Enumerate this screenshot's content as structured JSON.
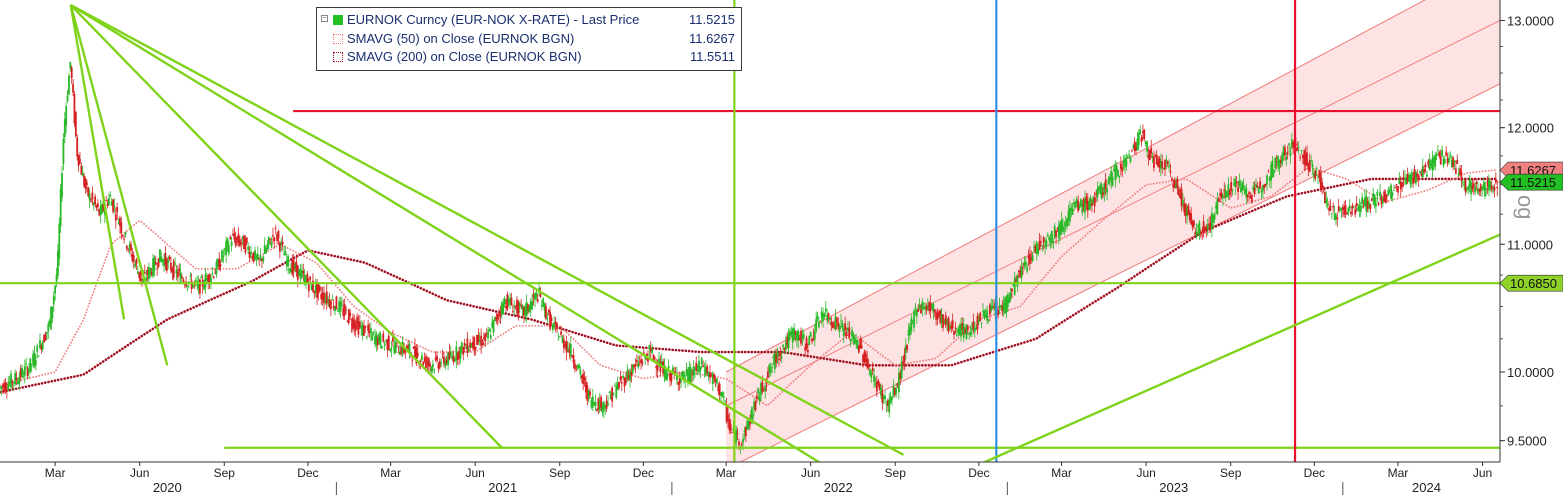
{
  "legend": {
    "items": [
      {
        "name": "EURNOK Curncy (EUR-NOK X-RATE) - Last Price",
        "value": "11.5215",
        "color": "#22c022",
        "style": "solid"
      },
      {
        "name": "SMAVG (50)  on Close (EURNOK BGN)",
        "value": "11.6267",
        "color": "#f08080",
        "style": "dotted"
      },
      {
        "name": "SMAVG (200)  on Close (EURNOK BGN)",
        "value": "11.5511",
        "color": "#a01020",
        "style": "dotted"
      }
    ]
  },
  "side_text": "og",
  "chart_data": {
    "type": "candlestick",
    "title": "",
    "xlabel": "",
    "ylabel": "",
    "ylim": [
      9.35,
      13.2
    ],
    "scale": "log",
    "y_ticks": [
      "9.5000",
      "10.0000",
      "11.0000",
      "12.0000",
      "13.0000"
    ],
    "x_months": [
      {
        "label": "Mar",
        "date": "2020-03"
      },
      {
        "label": "Jun",
        "date": "2020-06"
      },
      {
        "label": "Sep",
        "date": "2020-09"
      },
      {
        "label": "Dec",
        "date": "2020-12"
      },
      {
        "label": "Mar",
        "date": "2021-03"
      },
      {
        "label": "Jun",
        "date": "2021-06"
      },
      {
        "label": "Sep",
        "date": "2021-09"
      },
      {
        "label": "Dec",
        "date": "2021-12"
      },
      {
        "label": "Mar",
        "date": "2022-03"
      },
      {
        "label": "Jun",
        "date": "2022-06"
      },
      {
        "label": "Sep",
        "date": "2022-09"
      },
      {
        "label": "Dec",
        "date": "2022-12"
      },
      {
        "label": "Mar",
        "date": "2023-03"
      },
      {
        "label": "Jun",
        "date": "2023-06"
      },
      {
        "label": "Sep",
        "date": "2023-09"
      },
      {
        "label": "Dec",
        "date": "2023-12"
      },
      {
        "label": "Mar",
        "date": "2024-03"
      },
      {
        "label": "Jun",
        "date": "2024-06"
      }
    ],
    "x_years": [
      {
        "label": "2020",
        "date": "2020-07"
      },
      {
        "label": "2021",
        "date": "2021-07"
      },
      {
        "label": "2022",
        "date": "2022-07"
      },
      {
        "label": "2023",
        "date": "2023-07"
      },
      {
        "label": "2024",
        "date": "2024-04"
      }
    ],
    "x_start": "2020-01-01",
    "x_end": "2024-06-20",
    "price_series": {
      "name": "EURNOK Curncy (EUR-NOK X-RATE) - Last Price",
      "points": [
        [
          "2020-01-01",
          9.88
        ],
        [
          "2020-01-20",
          9.95
        ],
        [
          "2020-02-05",
          10.05
        ],
        [
          "2020-02-25",
          10.35
        ],
        [
          "2020-03-05",
          10.8
        ],
        [
          "2020-03-12",
          12.0
        ],
        [
          "2020-03-19",
          12.6
        ],
        [
          "2020-03-26",
          11.8
        ],
        [
          "2020-04-05",
          11.45
        ],
        [
          "2020-04-20",
          11.25
        ],
        [
          "2020-05-01",
          11.4
        ],
        [
          "2020-05-20",
          11.0
        ],
        [
          "2020-06-05",
          10.7
        ],
        [
          "2020-06-25",
          10.9
        ],
        [
          "2020-07-15",
          10.75
        ],
        [
          "2020-08-05",
          10.65
        ],
        [
          "2020-08-25",
          10.8
        ],
        [
          "2020-09-10",
          11.05
        ],
        [
          "2020-09-25",
          11.0
        ],
        [
          "2020-10-10",
          10.85
        ],
        [
          "2020-10-28",
          11.1
        ],
        [
          "2020-11-10",
          10.85
        ],
        [
          "2020-11-25",
          10.75
        ],
        [
          "2020-12-15",
          10.6
        ],
        [
          "2021-01-05",
          10.5
        ],
        [
          "2021-01-25",
          10.35
        ],
        [
          "2021-02-15",
          10.25
        ],
        [
          "2021-03-05",
          10.2
        ],
        [
          "2021-03-25",
          10.15
        ],
        [
          "2021-04-15",
          10.05
        ],
        [
          "2021-05-05",
          10.1
        ],
        [
          "2021-05-25",
          10.2
        ],
        [
          "2021-06-15",
          10.25
        ],
        [
          "2021-07-05",
          10.55
        ],
        [
          "2021-07-25",
          10.45
        ],
        [
          "2021-08-10",
          10.6
        ],
        [
          "2021-08-25",
          10.35
        ],
        [
          "2021-09-15",
          10.15
        ],
        [
          "2021-10-05",
          9.8
        ],
        [
          "2021-10-20",
          9.75
        ],
        [
          "2021-11-05",
          9.9
        ],
        [
          "2021-11-25",
          10.05
        ],
        [
          "2021-12-10",
          10.15
        ],
        [
          "2021-12-25",
          10.0
        ],
        [
          "2022-01-15",
          9.95
        ],
        [
          "2022-02-05",
          10.05
        ],
        [
          "2022-02-25",
          9.85
        ],
        [
          "2022-03-08",
          9.55
        ],
        [
          "2022-03-20",
          9.5
        ],
        [
          "2022-04-05",
          9.8
        ],
        [
          "2022-04-25",
          10.1
        ],
        [
          "2022-05-15",
          10.3
        ],
        [
          "2022-05-30",
          10.2
        ],
        [
          "2022-06-15",
          10.45
        ],
        [
          "2022-07-05",
          10.35
        ],
        [
          "2022-07-25",
          10.2
        ],
        [
          "2022-08-10",
          9.95
        ],
        [
          "2022-08-25",
          9.75
        ],
        [
          "2022-09-05",
          9.9
        ],
        [
          "2022-09-25",
          10.5
        ],
        [
          "2022-10-10",
          10.5
        ],
        [
          "2022-10-30",
          10.35
        ],
        [
          "2022-11-20",
          10.3
        ],
        [
          "2022-12-10",
          10.45
        ],
        [
          "2022-12-30",
          10.5
        ],
        [
          "2023-01-15",
          10.75
        ],
        [
          "2023-02-05",
          11.0
        ],
        [
          "2023-02-25",
          11.1
        ],
        [
          "2023-03-15",
          11.3
        ],
        [
          "2023-04-05",
          11.35
        ],
        [
          "2023-04-25",
          11.55
        ],
        [
          "2023-05-15",
          11.75
        ],
        [
          "2023-05-28",
          11.95
        ],
        [
          "2023-06-10",
          11.7
        ],
        [
          "2023-06-25",
          11.65
        ],
        [
          "2023-07-10",
          11.4
        ],
        [
          "2023-07-25",
          11.1
        ],
        [
          "2023-08-10",
          11.15
        ],
        [
          "2023-08-25",
          11.45
        ],
        [
          "2023-09-10",
          11.5
        ],
        [
          "2023-09-25",
          11.4
        ],
        [
          "2023-10-10",
          11.55
        ],
        [
          "2023-10-28",
          11.75
        ],
        [
          "2023-11-10",
          11.85
        ],
        [
          "2023-11-25",
          11.7
        ],
        [
          "2023-12-08",
          11.55
        ],
        [
          "2023-12-20",
          11.25
        ],
        [
          "2024-01-10",
          11.3
        ],
        [
          "2024-02-01",
          11.35
        ],
        [
          "2024-02-20",
          11.4
        ],
        [
          "2024-03-10",
          11.55
        ],
        [
          "2024-03-28",
          11.6
        ],
        [
          "2024-04-15",
          11.75
        ],
        [
          "2024-05-01",
          11.7
        ],
        [
          "2024-05-15",
          11.5
        ],
        [
          "2024-06-01",
          11.45
        ],
        [
          "2024-06-18",
          11.52
        ]
      ]
    },
    "sma50": {
      "name": "SMAVG (50)  on Close (EURNOK BGN)",
      "points": [
        [
          "2020-01-01",
          9.9
        ],
        [
          "2020-03-01",
          10.0
        ],
        [
          "2020-04-01",
          10.4
        ],
        [
          "2020-05-01",
          11.0
        ],
        [
          "2020-06-01",
          11.2
        ],
        [
          "2020-07-01",
          11.0
        ],
        [
          "2020-08-01",
          10.8
        ],
        [
          "2020-09-15",
          10.8
        ],
        [
          "2020-11-01",
          11.0
        ],
        [
          "2020-12-10",
          10.85
        ],
        [
          "2021-01-20",
          10.5
        ],
        [
          "2021-03-01",
          10.3
        ],
        [
          "2021-04-15",
          10.15
        ],
        [
          "2021-06-01",
          10.15
        ],
        [
          "2021-07-15",
          10.35
        ],
        [
          "2021-09-01",
          10.35
        ],
        [
          "2021-10-15",
          10.05
        ],
        [
          "2021-12-01",
          9.95
        ],
        [
          "2022-01-15",
          10.0
        ],
        [
          "2022-03-01",
          9.95
        ],
        [
          "2022-04-15",
          9.75
        ],
        [
          "2022-06-01",
          10.05
        ],
        [
          "2022-07-15",
          10.3
        ],
        [
          "2022-09-01",
          10.05
        ],
        [
          "2022-10-15",
          10.1
        ],
        [
          "2022-12-01",
          10.4
        ],
        [
          "2023-01-15",
          10.5
        ],
        [
          "2023-03-01",
          10.9
        ],
        [
          "2023-04-15",
          11.2
        ],
        [
          "2023-06-01",
          11.5
        ],
        [
          "2023-07-15",
          11.55
        ],
        [
          "2023-09-01",
          11.3
        ],
        [
          "2023-10-15",
          11.4
        ],
        [
          "2023-11-25",
          11.65
        ],
        [
          "2024-01-05",
          11.55
        ],
        [
          "2024-02-15",
          11.35
        ],
        [
          "2024-04-01",
          11.45
        ],
        [
          "2024-05-15",
          11.6
        ],
        [
          "2024-06-18",
          11.63
        ]
      ]
    },
    "sma200": {
      "name": "SMAVG (200)  on Close (EURNOK BGN)",
      "points": [
        [
          "2020-01-01",
          9.85
        ],
        [
          "2020-04-01",
          9.98
        ],
        [
          "2020-07-01",
          10.4
        ],
        [
          "2020-10-01",
          10.7
        ],
        [
          "2020-12-01",
          10.95
        ],
        [
          "2021-02-01",
          10.85
        ],
        [
          "2021-05-01",
          10.55
        ],
        [
          "2021-08-01",
          10.4
        ],
        [
          "2021-11-01",
          10.2
        ],
        [
          "2022-02-01",
          10.15
        ],
        [
          "2022-05-01",
          10.15
        ],
        [
          "2022-08-01",
          10.05
        ],
        [
          "2022-11-01",
          10.05
        ],
        [
          "2023-02-01",
          10.25
        ],
        [
          "2023-05-01",
          10.65
        ],
        [
          "2023-08-01",
          11.1
        ],
        [
          "2023-11-01",
          11.4
        ],
        [
          "2024-02-01",
          11.55
        ],
        [
          "2024-06-18",
          11.55
        ]
      ]
    },
    "price_labels": [
      {
        "value": 11.6267,
        "text": "11.6267",
        "color": "#f08080"
      },
      {
        "value": 11.5215,
        "text": "11.5215",
        "color": "#22c022"
      },
      {
        "value": 10.685,
        "text": "10.6850",
        "color": "#8ed22a"
      }
    ],
    "annotations": {
      "hlines": [
        {
          "y": 12.15,
          "from": "2020-11-15",
          "to": "2024-06-20",
          "color": "#e8112d"
        },
        {
          "y": 10.685,
          "from": "2020-01-01",
          "to": "2024-06-20",
          "color": "#7fd31a"
        },
        {
          "y": 9.45,
          "from": "2020-09-01",
          "to": "2024-06-20",
          "color": "#7fd31a"
        }
      ],
      "vlines": [
        {
          "x": "2022-03-10",
          "color": "#7fd31a"
        },
        {
          "x": "2022-12-20",
          "color": "#2f8fe0"
        },
        {
          "x": "2023-11-10",
          "color": "#e8112d"
        }
      ],
      "trendlines": [
        {
          "from": [
            "2020-03-18",
            13.15
          ],
          "to": [
            "2020-05-15",
            10.4
          ],
          "color": "#7fd31a"
        },
        {
          "from": [
            "2020-03-18",
            13.15
          ],
          "to": [
            "2020-07-01",
            10.05
          ],
          "color": "#7fd31a"
        },
        {
          "from": [
            "2020-03-18",
            13.15
          ],
          "to": [
            "2021-06-30",
            9.45
          ],
          "color": "#7fd31a"
        },
        {
          "from": [
            "2020-03-18",
            13.15
          ],
          "to": [
            "2022-06-10",
            9.35
          ],
          "color": "#7fd31a"
        },
        {
          "from": [
            "2020-03-18",
            13.15
          ],
          "to": [
            "2022-09-10",
            9.4
          ],
          "color": "#7fd31a"
        },
        {
          "from": [
            "2022-11-20",
            9.3
          ],
          "to": [
            "2024-06-20",
            11.08
          ],
          "color": "#7fd31a"
        }
      ],
      "channel": {
        "start": "2022-03-01",
        "end": "2024-06-20",
        "lower": [
          9.3,
          12.4
        ],
        "middle": [
          9.75,
          13.0
        ],
        "upper": [
          10.0,
          13.6
        ],
        "fill": "#fde3e3",
        "line": "#f07a7a"
      }
    }
  }
}
